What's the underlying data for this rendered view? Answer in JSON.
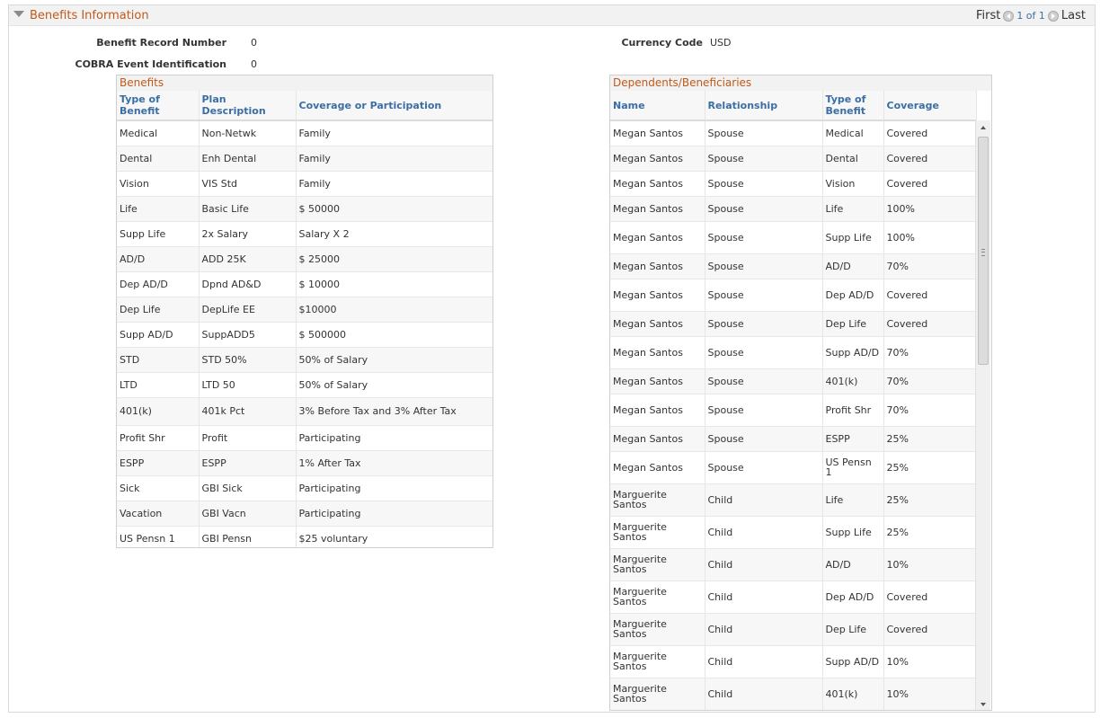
{
  "section": {
    "title": "Benefits Information",
    "nav_first": "First",
    "nav_count": "1 of 1",
    "nav_last": "Last"
  },
  "fields": {
    "benefit_record_label": "Benefit Record Number",
    "benefit_record_value": "0",
    "cobra_label": "COBRA Event Identification",
    "cobra_value": "0",
    "currency_label": "Currency Code",
    "currency_value": "USD"
  },
  "benefits": {
    "title": "Benefits",
    "columns": [
      "Type of Benefit",
      "Plan Description",
      "Coverage or Participation"
    ],
    "rows": [
      [
        "Medical",
        "Non-Netwk",
        "Family"
      ],
      [
        "Dental",
        "Enh Dental",
        "Family"
      ],
      [
        "Vision",
        "VIS Std",
        "Family"
      ],
      [
        "Life",
        "Basic Life",
        "$ 50000"
      ],
      [
        "Supp Life",
        "2x Salary",
        "Salary X 2"
      ],
      [
        "AD/D",
        "ADD 25K",
        "$ 25000"
      ],
      [
        "Dep AD/D",
        "Dpnd AD&D",
        "$ 10000"
      ],
      [
        "Dep Life",
        "DepLife EE",
        "$10000"
      ],
      [
        "Supp AD/D",
        "SuppADD5",
        "$ 500000"
      ],
      [
        "STD",
        "STD 50%",
        "50% of Salary"
      ],
      [
        "LTD",
        "LTD 50",
        "50% of Salary"
      ],
      [
        "401(k)",
        "401k Pct",
        "3% Before Tax and 3% After Tax"
      ],
      [
        "Profit Shr",
        "Profit",
        "Participating"
      ],
      [
        "ESPP",
        "ESPP",
        "1% After Tax"
      ],
      [
        "Sick",
        "GBI Sick",
        "Participating"
      ],
      [
        "Vacation",
        "GBI Vacn",
        "Participating"
      ],
      [
        "US Pensn 1",
        "GBI Pensn",
        "$25 voluntary"
      ]
    ]
  },
  "dependents": {
    "title": "Dependents/Beneficiaries",
    "columns": [
      "Name",
      "Relationship",
      "Type of Benefit",
      "Coverage"
    ],
    "rows": [
      [
        "Megan Santos",
        "Spouse",
        "Medical",
        "Covered"
      ],
      [
        "Megan Santos",
        "Spouse",
        "Dental",
        "Covered"
      ],
      [
        "Megan Santos",
        "Spouse",
        "Vision",
        "Covered"
      ],
      [
        "Megan Santos",
        "Spouse",
        "Life",
        "100%"
      ],
      [
        "Megan Santos",
        "Spouse",
        "Supp Life",
        "100%"
      ],
      [
        "Megan Santos",
        "Spouse",
        "AD/D",
        "70%"
      ],
      [
        "Megan Santos",
        "Spouse",
        "Dep AD/D",
        "Covered"
      ],
      [
        "Megan Santos",
        "Spouse",
        "Dep Life",
        "Covered"
      ],
      [
        "Megan Santos",
        "Spouse",
        "Supp AD/D",
        "70%"
      ],
      [
        "Megan Santos",
        "Spouse",
        "401(k)",
        "70%"
      ],
      [
        "Megan Santos",
        "Spouse",
        "Profit Shr",
        "70%"
      ],
      [
        "Megan Santos",
        "Spouse",
        "ESPP",
        "25%"
      ],
      [
        "Megan Santos",
        "Spouse",
        "US Pensn 1",
        "25%"
      ],
      [
        "Marguerite Santos",
        "Child",
        "Life",
        "25%"
      ],
      [
        "Marguerite Santos",
        "Child",
        "Supp Life",
        "25%"
      ],
      [
        "Marguerite Santos",
        "Child",
        "AD/D",
        "10%"
      ],
      [
        "Marguerite Santos",
        "Child",
        "Dep AD/D",
        "Covered"
      ],
      [
        "Marguerite Santos",
        "Child",
        "Dep Life",
        "Covered"
      ],
      [
        "Marguerite Santos",
        "Child",
        "Supp AD/D",
        "10%"
      ],
      [
        "Marguerite Santos",
        "Child",
        "401(k)",
        "10%"
      ]
    ]
  }
}
